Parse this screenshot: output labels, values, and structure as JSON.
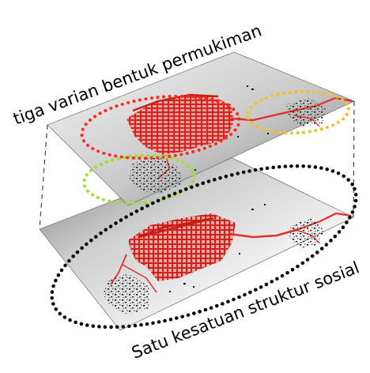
{
  "labels": {
    "top": "tiga varian bentuk permukiman",
    "bottom": "Satu kesatuan struktur sosial"
  },
  "colors": {
    "background": "#ffffff",
    "plane_light": "#f4f4f4",
    "plane_dark": "#6a6a6a",
    "settlement_red": "#e0302c",
    "settlement_black": "#111111",
    "ellipse_red": "#ff2a1a",
    "ellipse_yellow": "#f2c21c",
    "ellipse_green": "#9be22a",
    "ellipse_black": "#000000",
    "guide_lines": "#333333"
  }
}
